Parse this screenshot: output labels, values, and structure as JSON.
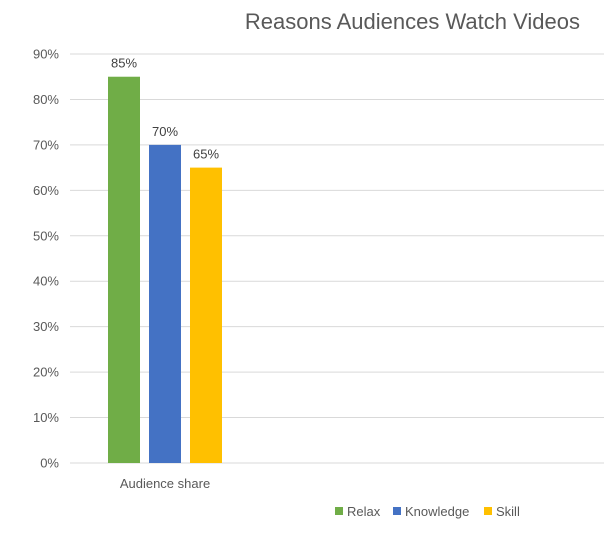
{
  "chart_data": {
    "type": "bar",
    "title": "Reasons Audiences Watch Videos",
    "categories": [
      "Audience share"
    ],
    "series": [
      {
        "name": "Relax",
        "values": [
          85
        ],
        "label": "85%",
        "color": "#70ad47"
      },
      {
        "name": "Knowledge",
        "values": [
          70
        ],
        "label": "70%",
        "color": "#4472c4"
      },
      {
        "name": "Skill",
        "values": [
          65
        ],
        "label": "65%",
        "color": "#ffc000"
      }
    ],
    "ylim": [
      0,
      90
    ],
    "yticks": [
      "0%",
      "10%",
      "20%",
      "30%",
      "40%",
      "50%",
      "60%",
      "70%",
      "80%",
      "90%"
    ],
    "grid": true,
    "legend": "bottom-right"
  }
}
